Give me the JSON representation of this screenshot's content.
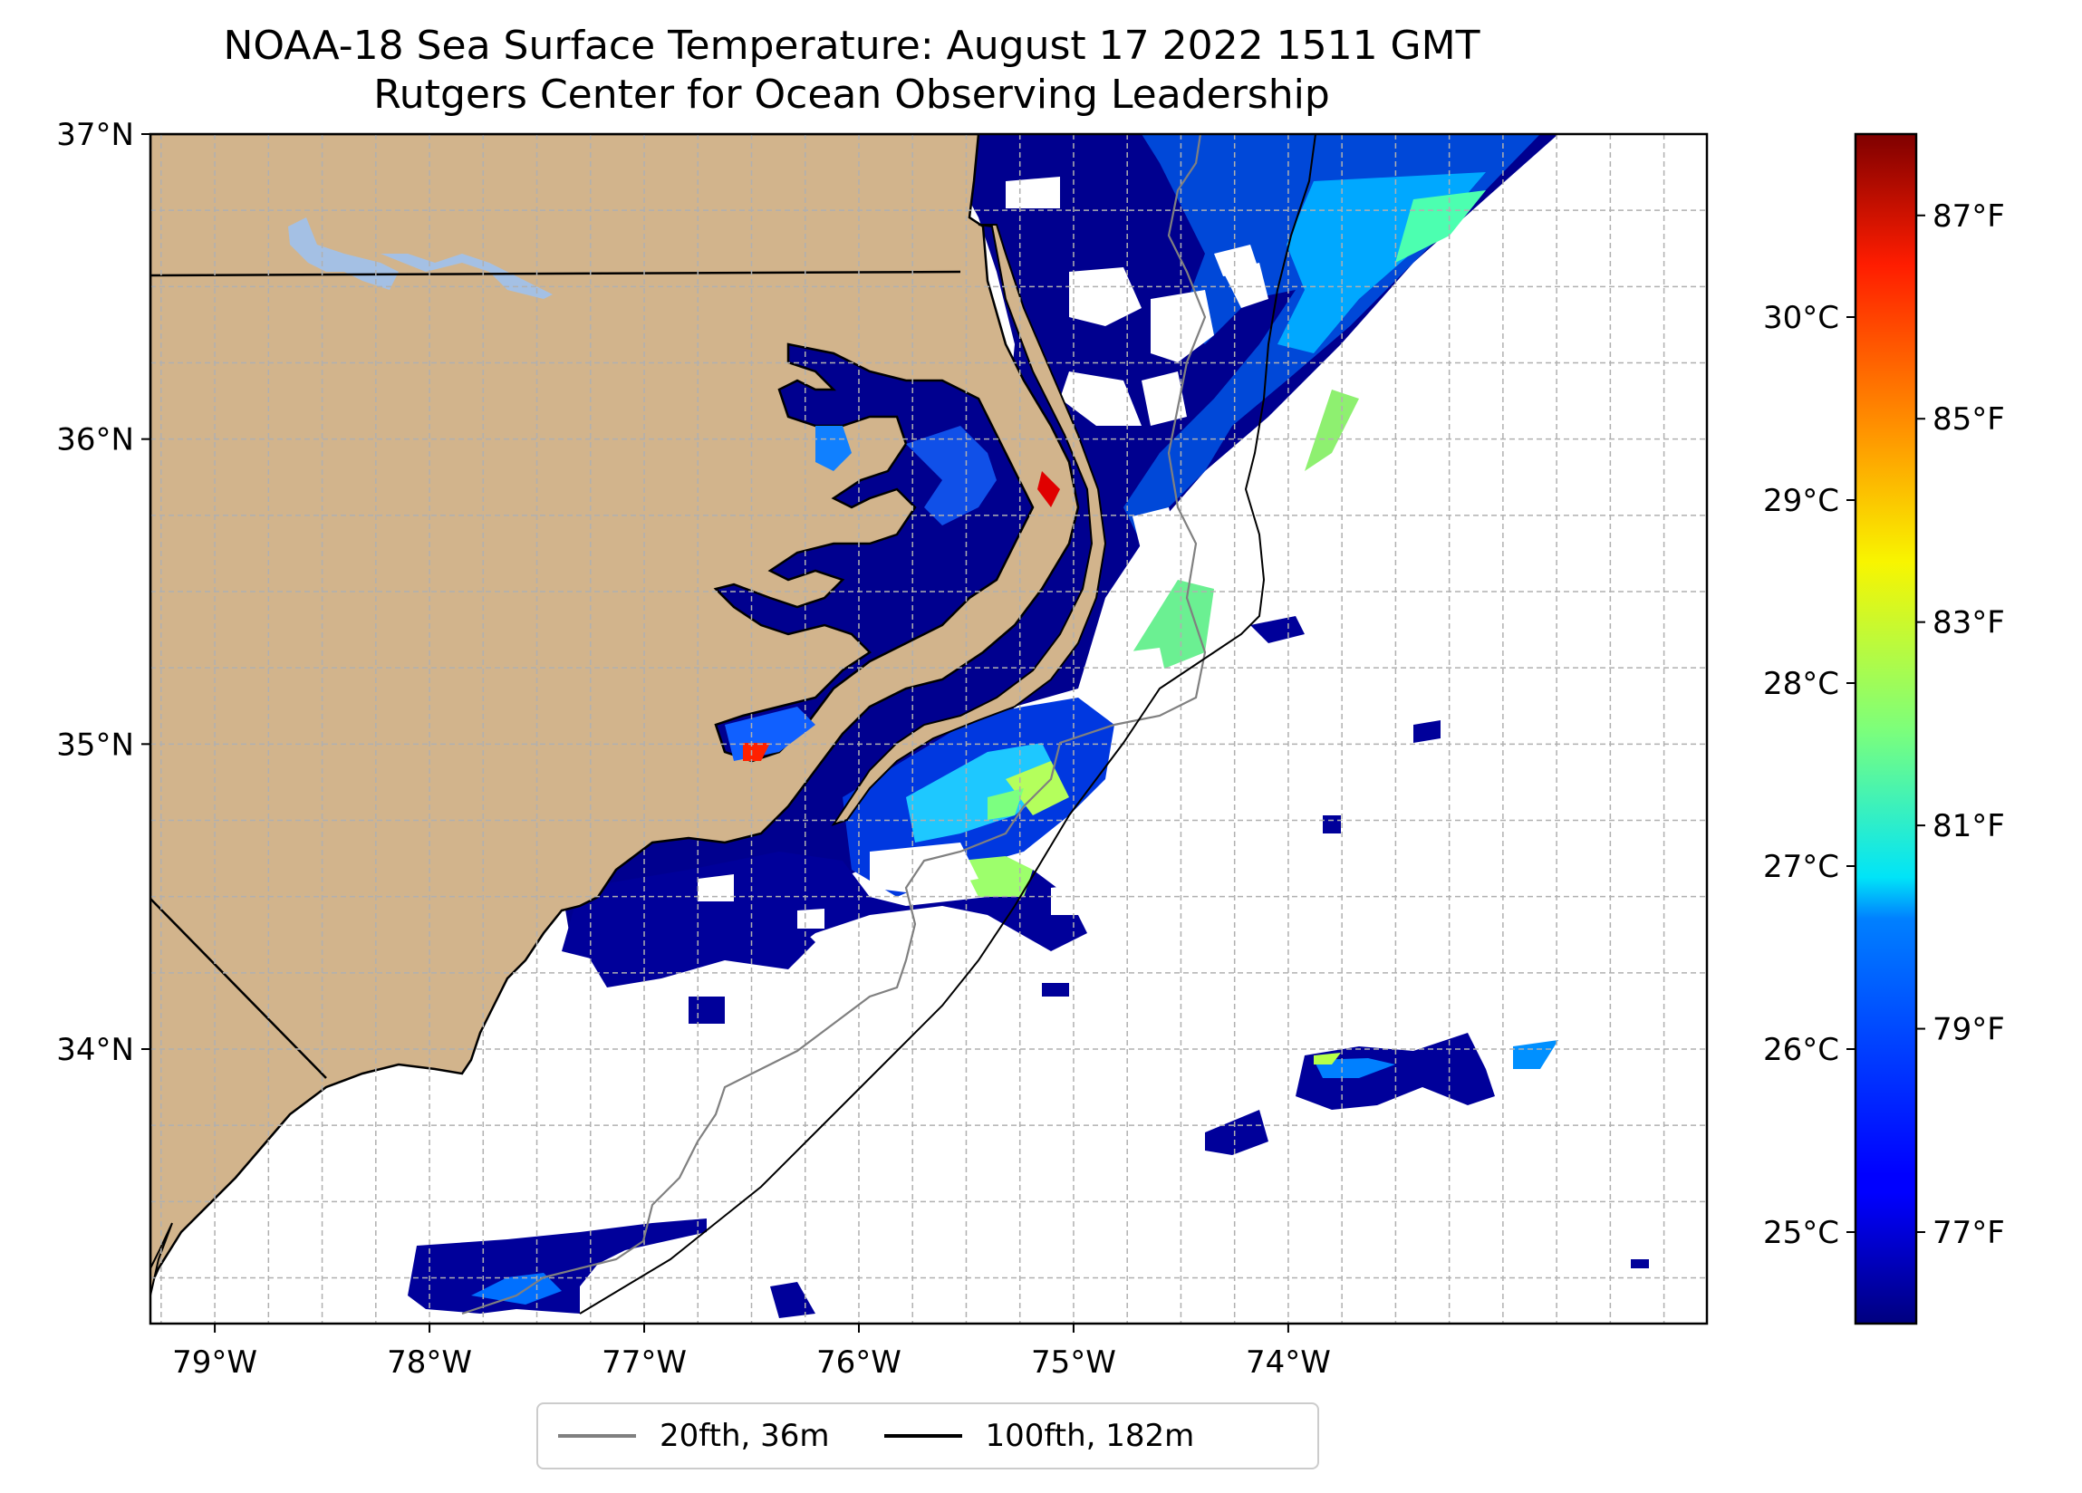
{
  "title": {
    "line1": "NOAA-18 Sea Surface Temperature: August 17 2022 1511 GMT",
    "line2": "Rutgers Center for Ocean Observing Leadership"
  },
  "map": {
    "lon_range": [
      -79.3,
      -72.05
    ],
    "lat_range": [
      33.1,
      37.0
    ],
    "lat_ticks": [
      {
        "value": 37,
        "label": "37°N"
      },
      {
        "value": 36,
        "label": "36°N"
      },
      {
        "value": 35,
        "label": "35°N"
      },
      {
        "value": 34,
        "label": "34°N"
      }
    ],
    "lon_ticks": [
      {
        "value": -79,
        "label": "79°W"
      },
      {
        "value": -78,
        "label": "78°W"
      },
      {
        "value": -77,
        "label": "77°W"
      },
      {
        "value": -76,
        "label": "76°W"
      },
      {
        "value": -75,
        "label": "75°W"
      },
      {
        "value": -74,
        "label": "74°W"
      }
    ],
    "gridlines": true,
    "land_color": "#d2b48c",
    "water_body_color": "#a4c0e4",
    "colormap": "jet"
  },
  "colorbar": {
    "celsius_ticks": [
      {
        "value": 25,
        "label": "25°C"
      },
      {
        "value": 26,
        "label": "26°C"
      },
      {
        "value": 27,
        "label": "27°C"
      },
      {
        "value": 28,
        "label": "28°C"
      },
      {
        "value": 29,
        "label": "29°C"
      },
      {
        "value": 30,
        "label": "30°C"
      }
    ],
    "fahrenheit_ticks": [
      {
        "value": 77,
        "label": "77°F"
      },
      {
        "value": 79,
        "label": "79°F"
      },
      {
        "value": 81,
        "label": "81°F"
      },
      {
        "value": 83,
        "label": "83°F"
      },
      {
        "value": 85,
        "label": "85°F"
      },
      {
        "value": 87,
        "label": "87°F"
      }
    ],
    "range_celsius": [
      24.5,
      31.0
    ]
  },
  "legend": {
    "items": [
      {
        "label": "20fth, 36m",
        "color": "#808080"
      },
      {
        "label": "100fth, 182m",
        "color": "#000000"
      }
    ]
  }
}
